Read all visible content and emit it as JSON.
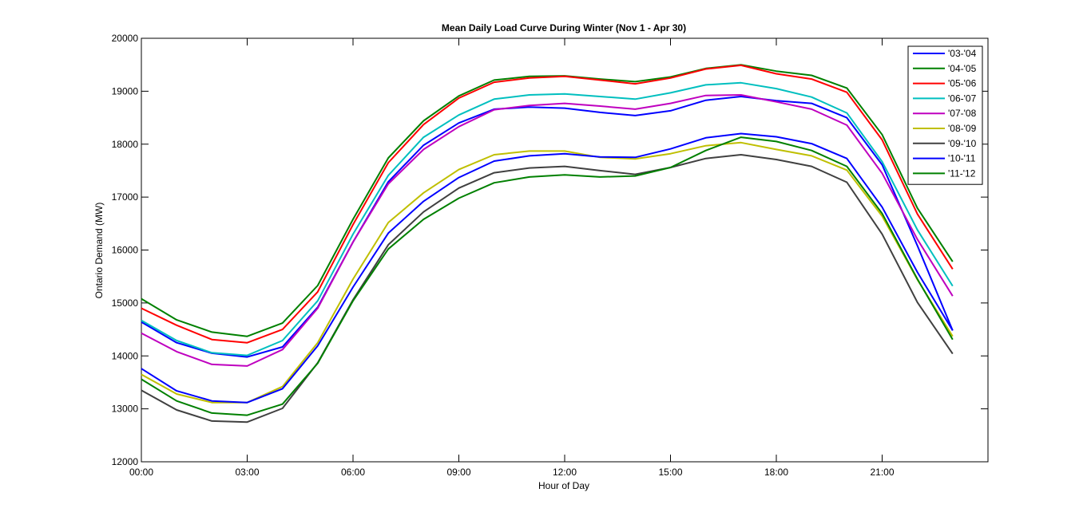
{
  "chart_data": {
    "type": "line",
    "title": "Mean Daily Load Curve During Winter (Nov 1 - Apr 30)",
    "xlabel": "Hour of Day",
    "ylabel": "Ontario Demand (MW)",
    "xlim": [
      0,
      24
    ],
    "ylim": [
      12000,
      20000
    ],
    "x_ticks": [
      0,
      3,
      6,
      9,
      12,
      15,
      18,
      21,
      24
    ],
    "x_tick_labels": [
      "00:00",
      "03:00",
      "06:00",
      "09:00",
      "12:00",
      "15:00",
      "18:00",
      "21:00",
      ""
    ],
    "y_ticks": [
      12000,
      13000,
      14000,
      15000,
      16000,
      17000,
      18000,
      19000,
      20000
    ],
    "y_tick_labels": [
      "12000",
      "13000",
      "14000",
      "15000",
      "16000",
      "17000",
      "18000",
      "19000",
      "20000"
    ],
    "grid": false,
    "legend_position": "top-right",
    "x": [
      0,
      1,
      2,
      3,
      4,
      5,
      6,
      7,
      8,
      9,
      10,
      11,
      12,
      13,
      14,
      15,
      16,
      17,
      18,
      19,
      20,
      21,
      22,
      23
    ],
    "series": [
      {
        "name": "'03-'04",
        "color": "#0000ff",
        "values": [
          14640,
          14250,
          14050,
          13980,
          14170,
          14920,
          16150,
          17290,
          17980,
          18400,
          18660,
          18700,
          18680,
          18600,
          18540,
          18630,
          18830,
          18900,
          18820,
          18770,
          18500,
          17610,
          16080,
          14480
        ]
      },
      {
        "name": "'04-'05",
        "color": "#008000",
        "values": [
          15080,
          14680,
          14450,
          14370,
          14620,
          15330,
          16580,
          17740,
          18440,
          18910,
          19210,
          19280,
          19290,
          19230,
          19180,
          19270,
          19430,
          19500,
          19380,
          19300,
          19060,
          18180,
          16790,
          15780
        ]
      },
      {
        "name": "'05-'06",
        "color": "#ff0000",
        "values": [
          14900,
          14580,
          14310,
          14250,
          14500,
          15210,
          16480,
          17650,
          18370,
          18870,
          19170,
          19250,
          19280,
          19210,
          19140,
          19250,
          19420,
          19490,
          19330,
          19230,
          18980,
          18080,
          16680,
          15640
        ]
      },
      {
        "name": "'06-'07",
        "color": "#00bfbf",
        "values": [
          14670,
          14290,
          14060,
          14010,
          14290,
          15040,
          16300,
          17410,
          18130,
          18550,
          18850,
          18930,
          18950,
          18900,
          18850,
          18970,
          19120,
          19160,
          19050,
          18890,
          18590,
          17670,
          16380,
          15320
        ]
      },
      {
        "name": "'07-'08",
        "color": "#bf00bf",
        "values": [
          14430,
          14080,
          13840,
          13810,
          14120,
          14900,
          16150,
          17250,
          17900,
          18330,
          18650,
          18730,
          18770,
          18720,
          18660,
          18770,
          18920,
          18930,
          18800,
          18660,
          18360,
          17450,
          16200,
          15130
        ]
      },
      {
        "name": "'08-'09",
        "color": "#bfbf00",
        "values": [
          13650,
          13280,
          13120,
          13120,
          13420,
          14250,
          15450,
          16520,
          17080,
          17520,
          17800,
          17870,
          17870,
          17750,
          17720,
          17820,
          17970,
          18030,
          17900,
          17780,
          17510,
          16640,
          15440,
          14370
        ]
      },
      {
        "name": "'09-'10",
        "color": "#404040",
        "values": [
          13350,
          12980,
          12770,
          12750,
          13010,
          13870,
          15060,
          16100,
          16720,
          17170,
          17460,
          17550,
          17580,
          17500,
          17430,
          17560,
          17730,
          17800,
          17710,
          17580,
          17280,
          16300,
          15010,
          14040
        ]
      },
      {
        "name": "'10-'11",
        "color": "#0000ff",
        "values": [
          13760,
          13340,
          13150,
          13120,
          13380,
          14190,
          15300,
          16320,
          16920,
          17370,
          17680,
          17780,
          17820,
          17760,
          17750,
          17910,
          18120,
          18200,
          18140,
          18010,
          17730,
          16810,
          15580,
          14480
        ]
      },
      {
        "name": "'11-'12",
        "color": "#008000",
        "values": [
          13560,
          13150,
          12920,
          12880,
          13090,
          13860,
          15040,
          16020,
          16580,
          16980,
          17270,
          17380,
          17420,
          17380,
          17400,
          17560,
          17880,
          18130,
          18050,
          17880,
          17580,
          16690,
          15450,
          14310
        ]
      }
    ]
  }
}
